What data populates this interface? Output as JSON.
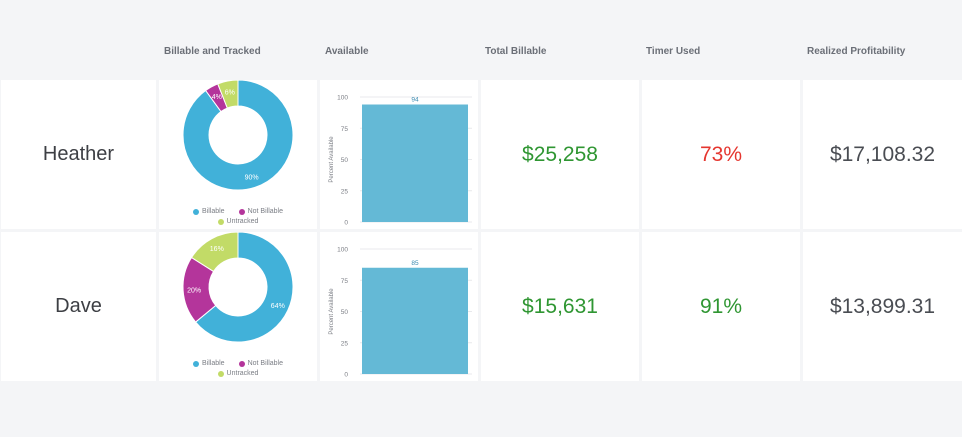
{
  "headers": {
    "billable_tracked": "Billable and Tracked",
    "available": "Available",
    "total_billable": "Total Billable",
    "timer_used": "Timer Used",
    "realized_profitability": "Realized Profitability"
  },
  "legend": {
    "billable": "Billable",
    "not_billable": "Not Billable",
    "untracked": "Untracked"
  },
  "colors": {
    "billable": "#41b1d9",
    "not_billable": "#b4359b",
    "untracked": "#c2db67",
    "bar": "#64b9d6",
    "green": "#2f9632",
    "red": "#e5362f"
  },
  "rows": [
    {
      "name": "Heather",
      "total_billable": "$25,258",
      "timer_used": "73%",
      "timer_status": "red",
      "realized_profitability": "$17,108.32"
    },
    {
      "name": "Dave",
      "total_billable": "$15,631",
      "timer_used": "91%",
      "timer_status": "green",
      "realized_profitability": "$13,899.31"
    }
  ],
  "chart_data": [
    {
      "type": "pie",
      "person": "Heather",
      "categories": [
        "Billable",
        "Not Billable",
        "Untracked"
      ],
      "values": [
        90,
        4,
        6
      ],
      "labels": [
        "90%",
        "4%",
        "6%"
      ]
    },
    {
      "type": "bar",
      "person": "Heather",
      "categories": [
        ""
      ],
      "values": [
        94
      ],
      "data_label": "94",
      "ylabel": "Percent Available",
      "ylim": [
        0,
        100
      ],
      "yticks": [
        "0",
        "25",
        "50",
        "75",
        "100"
      ]
    },
    {
      "type": "pie",
      "person": "Dave",
      "categories": [
        "Billable",
        "Not Billable",
        "Untracked"
      ],
      "values": [
        64,
        20,
        16
      ],
      "labels": [
        "64%",
        "20%",
        "16%"
      ]
    },
    {
      "type": "bar",
      "person": "Dave",
      "categories": [
        ""
      ],
      "values": [
        85
      ],
      "data_label": "85",
      "ylabel": "Percent Available",
      "ylim": [
        0,
        100
      ],
      "yticks": [
        "0",
        "25",
        "50",
        "75",
        "100"
      ]
    }
  ]
}
